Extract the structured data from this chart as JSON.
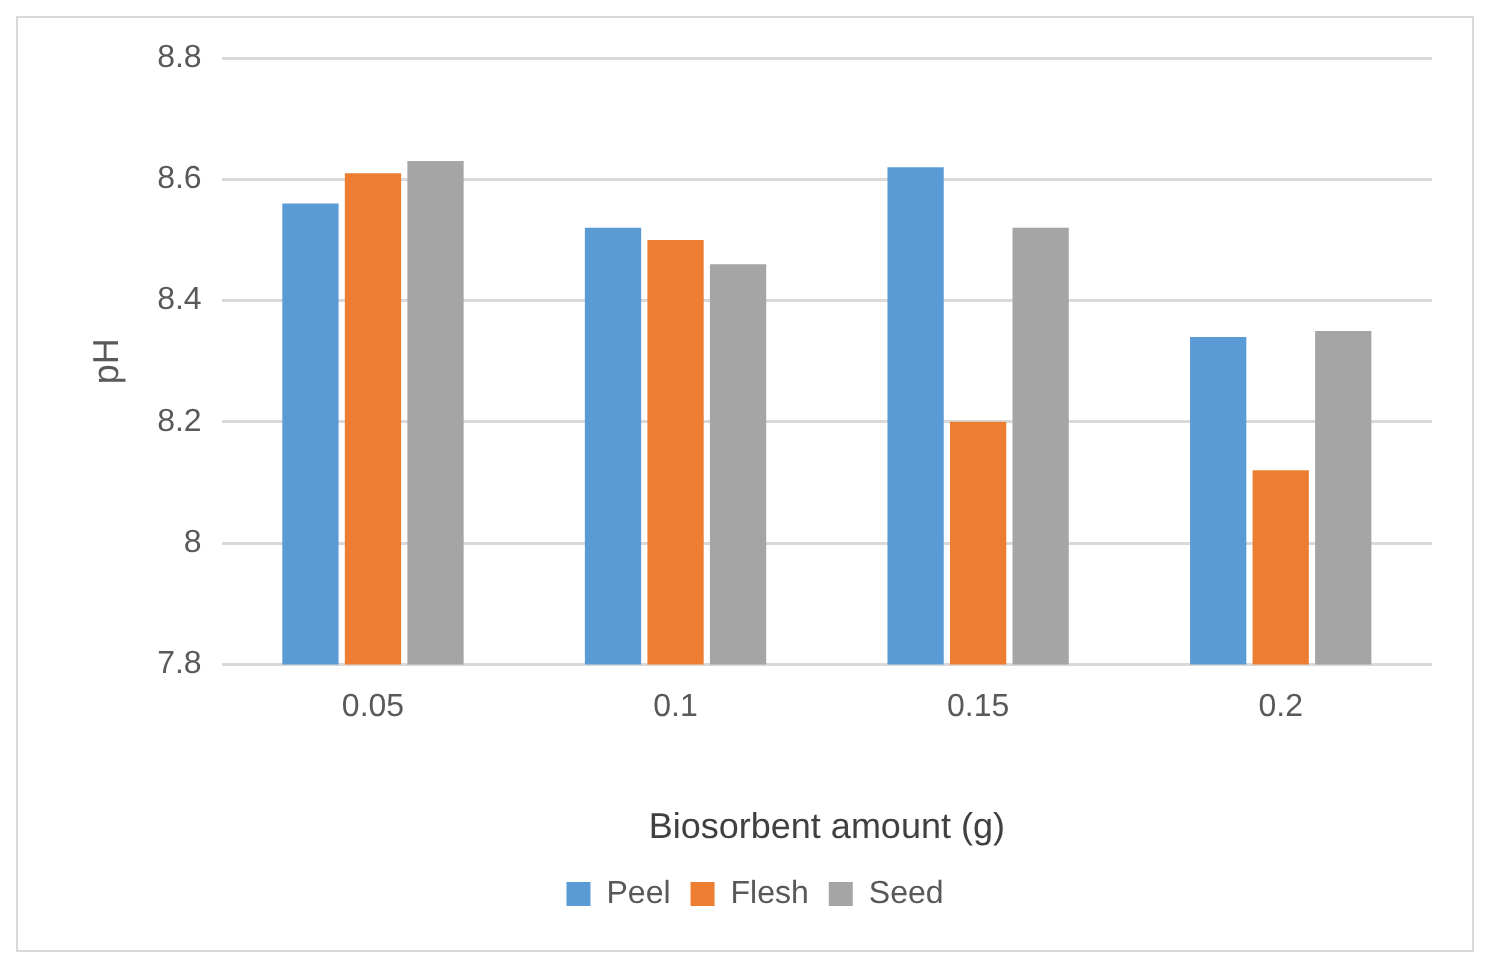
{
  "chart_data": {
    "type": "bar",
    "xlabel": "Biosorbent amount (g)",
    "ylabel": "pH",
    "categories": [
      "0.05",
      "0.1",
      "0.15",
      "0.2"
    ],
    "series": [
      {
        "name": "Peel",
        "color": "#5b9bd5",
        "values": [
          8.56,
          8.52,
          8.62,
          8.34
        ]
      },
      {
        "name": "Flesh",
        "color": "#ed7d31",
        "values": [
          8.61,
          8.5,
          8.2,
          8.12
        ]
      },
      {
        "name": "Seed",
        "color": "#a5a5a5",
        "values": [
          8.63,
          8.46,
          8.52,
          8.35
        ]
      }
    ],
    "ylim": [
      7.8,
      8.8
    ],
    "yticks": [
      7.8,
      8,
      8.2,
      8.4,
      8.6,
      8.8
    ],
    "grid": "y",
    "legend": "bottom"
  }
}
